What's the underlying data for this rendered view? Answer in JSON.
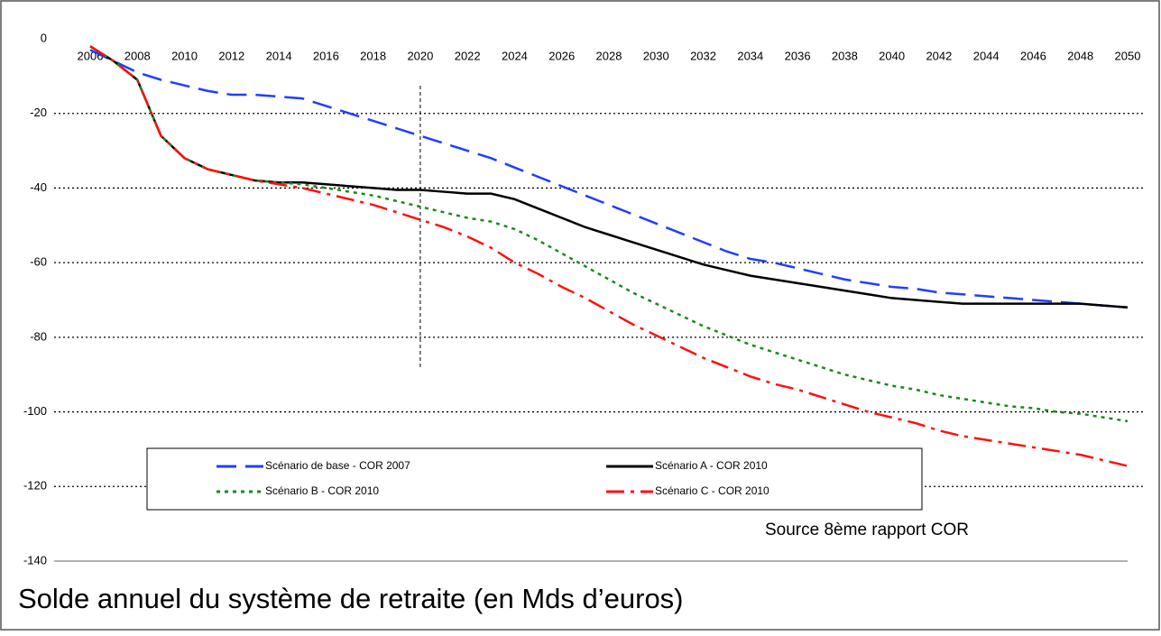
{
  "chart_data": {
    "type": "line",
    "title": "Solde annuel du système de retraite (en Mds d’euros)",
    "annotation": "Source 8ème rapport COR",
    "x": [
      2006,
      2007,
      2008,
      2009,
      2010,
      2011,
      2012,
      2013,
      2014,
      2015,
      2016,
      2017,
      2018,
      2019,
      2020,
      2021,
      2022,
      2023,
      2024,
      2025,
      2026,
      2027,
      2028,
      2029,
      2030,
      2031,
      2032,
      2033,
      2034,
      2035,
      2036,
      2037,
      2038,
      2039,
      2040,
      2041,
      2042,
      2043,
      2044,
      2045,
      2046,
      2047,
      2048,
      2049,
      2050
    ],
    "series": [
      {
        "name": "Scénario de base - COR 2007",
        "color": "#1f3fff",
        "dash": "22,10",
        "values": [
          -3,
          -6,
          -9,
          -11,
          -12.5,
          -14,
          -15,
          -15,
          -15.5,
          -16,
          -18,
          -20,
          -22,
          -24,
          -26,
          -28,
          -30,
          -32,
          -34.5,
          -37,
          -39.5,
          -42,
          -44.5,
          -47,
          -49.5,
          -52,
          -54.5,
          -57,
          -59,
          -60,
          -61.5,
          -63,
          -64.5,
          -65.5,
          -66.5,
          -67,
          -68,
          -68.5,
          -69,
          -69.5,
          -70,
          -70.5,
          -71,
          -71.5,
          -72
        ]
      },
      {
        "name": "Scénario A - COR 2010",
        "color": "#000000",
        "dash": "none",
        "values": [
          -2,
          -6,
          -11,
          -26,
          -32,
          -35,
          -36.5,
          -38,
          -38.5,
          -38.5,
          -39,
          -39.5,
          -40,
          -40.5,
          -40.5,
          -41,
          -41.5,
          -41.5,
          -43,
          -45.5,
          -48,
          -50.5,
          -52.5,
          -54.5,
          -56.5,
          -58.5,
          -60.5,
          -62,
          -63.5,
          -64.5,
          -65.5,
          -66.5,
          -67.5,
          -68.5,
          -69.5,
          -70,
          -70.5,
          -71,
          -71,
          -71,
          -71,
          -71,
          -71,
          -71.5,
          -72
        ]
      },
      {
        "name": "Scénario B - COR 2010",
        "color": "#1a8a1a",
        "dash": "4,5",
        "values": [
          -2,
          -6,
          -11,
          -26,
          -32,
          -35,
          -36.5,
          -38,
          -38.5,
          -39,
          -40,
          -41,
          -42,
          -43.5,
          -45,
          -46.5,
          -48,
          -49,
          -51,
          -54,
          -57.5,
          -61,
          -64.5,
          -68,
          -71,
          -74,
          -77,
          -79.5,
          -82,
          -84,
          -86,
          -88,
          -90,
          -91.5,
          -93,
          -94,
          -95.5,
          -96.5,
          -97.5,
          -98.5,
          -99,
          -100,
          -100.5,
          -101.5,
          -102.5
        ]
      },
      {
        "name": "Scénario C - COR 2010",
        "color": "#ff1010",
        "dash": "20,7,4,7",
        "values": [
          -2,
          -6,
          -11,
          -26,
          -32,
          -35,
          -36.5,
          -38,
          -39,
          -40,
          -41.5,
          -43,
          -44.5,
          -46.5,
          -48.5,
          -50.5,
          -53,
          -56,
          -60,
          -63,
          -66.5,
          -69.5,
          -73,
          -76.5,
          -79.5,
          -82.5,
          -85.5,
          -88,
          -90.5,
          -92.5,
          -94,
          -96,
          -98,
          -100,
          -101.5,
          -103,
          -105,
          -106.5,
          -107.5,
          -108.5,
          -109.5,
          -110.5,
          -111.5,
          -113,
          -114.5
        ]
      }
    ],
    "xlim": [
      2006,
      2050
    ],
    "xticks": [
      2006,
      2008,
      2010,
      2012,
      2014,
      2016,
      2018,
      2020,
      2022,
      2024,
      2026,
      2028,
      2030,
      2032,
      2034,
      2036,
      2038,
      2040,
      2042,
      2044,
      2046,
      2048,
      2050
    ],
    "ylim": [
      -140,
      0
    ],
    "yticks": [
      0,
      -20,
      -40,
      -60,
      -80,
      -100,
      -120,
      -140
    ],
    "vline": 2020,
    "grid": true
  }
}
